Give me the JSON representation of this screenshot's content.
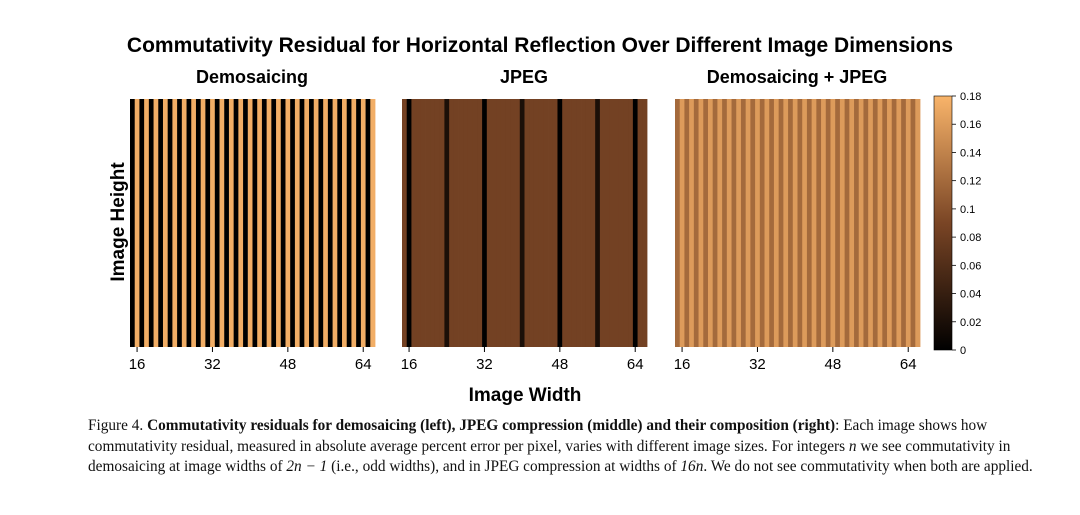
{
  "figure": {
    "title": "Commutativity Residual for Horizontal Reflection Over Different Image Dimensions",
    "xlabel": "Image Width",
    "ylabel": "Image Height",
    "colorbar_ticks": [
      "0.18",
      "0.16",
      "0.14",
      "0.12",
      "0.1",
      "0.08",
      "0.06",
      "0.04",
      "0.02",
      "0"
    ],
    "colors": {
      "cmap_low": "#000000",
      "cmap_mid": "#7a4525",
      "cmap_high": "#f9b46a"
    }
  },
  "chart_data": [
    {
      "type": "heatmap",
      "title": "Demosaicing",
      "xlabel": "Image Width",
      "ylabel": "Image Height",
      "x_ticks": [
        16,
        32,
        48,
        64
      ],
      "x_range": [
        15,
        66
      ],
      "color_range": [
        0,
        0.18
      ],
      "colormap": "copper",
      "pattern": "odd widths residual ~0, even widths residual ~0.18 (constant over height)",
      "column_values": {
        "odd": 0.0,
        "even": 0.175
      }
    },
    {
      "type": "heatmap",
      "title": "JPEG",
      "xlabel": "Image Width",
      "ylabel": "Image Height",
      "x_ticks": [
        16,
        32,
        48,
        64
      ],
      "x_range": [
        15,
        66
      ],
      "color_range": [
        0,
        0.18
      ],
      "colormap": "copper",
      "pattern": "widths multiple of 16 residual ~0, multiples of 8 ~0.02, others ~0.085",
      "column_values": {
        "multiple_of_16": 0.0,
        "multiple_of_8": 0.02,
        "other": 0.085
      }
    },
    {
      "type": "heatmap",
      "title": "Demosaicing + JPEG",
      "xlabel": "Image Width",
      "ylabel": "Image Height",
      "x_ticks": [
        16,
        32,
        48,
        64
      ],
      "x_range": [
        15,
        66
      ],
      "color_range": [
        0,
        0.18
      ],
      "colormap": "copper",
      "pattern": "no zero residual; odd widths ~0.12, even widths ~0.16",
      "column_values": {
        "odd": 0.12,
        "even": 0.16
      }
    }
  ],
  "caption": {
    "label": "Figure 4.",
    "bold": "Commutativity residuals for demosaicing (left), JPEG compression (middle) and their composition (right)",
    "text_1": ": Each image shows how commutativity residual, measured in absolute average percent error per pixel, varies with different image sizes. For integers ",
    "var_n": "n",
    "text_2": " we see commutativity in demosaicing at image widths of ",
    "expr_1": "2n − 1",
    "text_3": " (i.e., odd widths), and in JPEG compression at widths of ",
    "expr_2": "16n",
    "text_4": ". We do not see commutativity when both are applied."
  }
}
